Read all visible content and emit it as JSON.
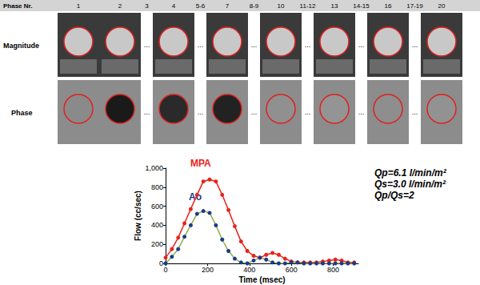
{
  "panel": {
    "header_label": "Phase Nr.",
    "row_labels": [
      "Magnitude",
      "Phase"
    ],
    "ellipsis": "...",
    "columns": [
      {
        "label": "1",
        "image": true
      },
      {
        "label": "2",
        "image": true
      },
      {
        "label": "3",
        "image": false
      },
      {
        "label": "4",
        "image": true
      },
      {
        "label": "5-6",
        "image": false
      },
      {
        "label": "7",
        "image": true
      },
      {
        "label": "8-9",
        "image": false
      },
      {
        "label": "10",
        "image": true
      },
      {
        "label": "11-12",
        "image": false
      },
      {
        "label": "13",
        "image": true
      },
      {
        "label": "14-15",
        "image": false
      },
      {
        "label": "16",
        "image": true
      },
      {
        "label": "17-19",
        "image": false
      },
      {
        "label": "20",
        "image": true
      }
    ]
  },
  "chart_data": {
    "type": "line",
    "x_label": "Time (msec)",
    "y_label": "Flow (cc/sec)",
    "xlim": [
      0,
      920
    ],
    "xticks": [
      0,
      200,
      400,
      600,
      800
    ],
    "ylim": [
      0,
      1000
    ],
    "yticks": [
      0,
      200,
      400,
      600,
      800,
      1000
    ],
    "grid": false,
    "x": [
      0,
      30,
      60,
      90,
      120,
      150,
      180,
      210,
      240,
      270,
      300,
      330,
      360,
      390,
      420,
      450,
      480,
      510,
      540,
      570,
      600,
      630,
      660,
      690,
      720,
      750,
      780,
      810,
      840,
      870,
      900
    ],
    "series": [
      {
        "name": "MPA",
        "color": "#e8231c",
        "marker": "circle",
        "values": [
          60,
          150,
          270,
          420,
          570,
          720,
          860,
          880,
          860,
          720,
          560,
          390,
          230,
          130,
          80,
          60,
          90,
          110,
          90,
          50,
          20,
          10,
          10,
          10,
          10,
          20,
          30,
          40,
          30,
          10,
          10
        ]
      },
      {
        "name": "Ao",
        "color": "#1b3a8c",
        "marker": "circle",
        "values": [
          0,
          70,
          150,
          280,
          400,
          520,
          550,
          530,
          400,
          250,
          130,
          50,
          10,
          0,
          30,
          60,
          40,
          10,
          0,
          0,
          10,
          10,
          0,
          0,
          0,
          0,
          0,
          0,
          0,
          0,
          0
        ]
      }
    ],
    "annotations": [
      "Qp=6.1 l/min/m²",
      "Qs=3.0 l/min/m²",
      "Qp/Qs=2"
    ]
  }
}
